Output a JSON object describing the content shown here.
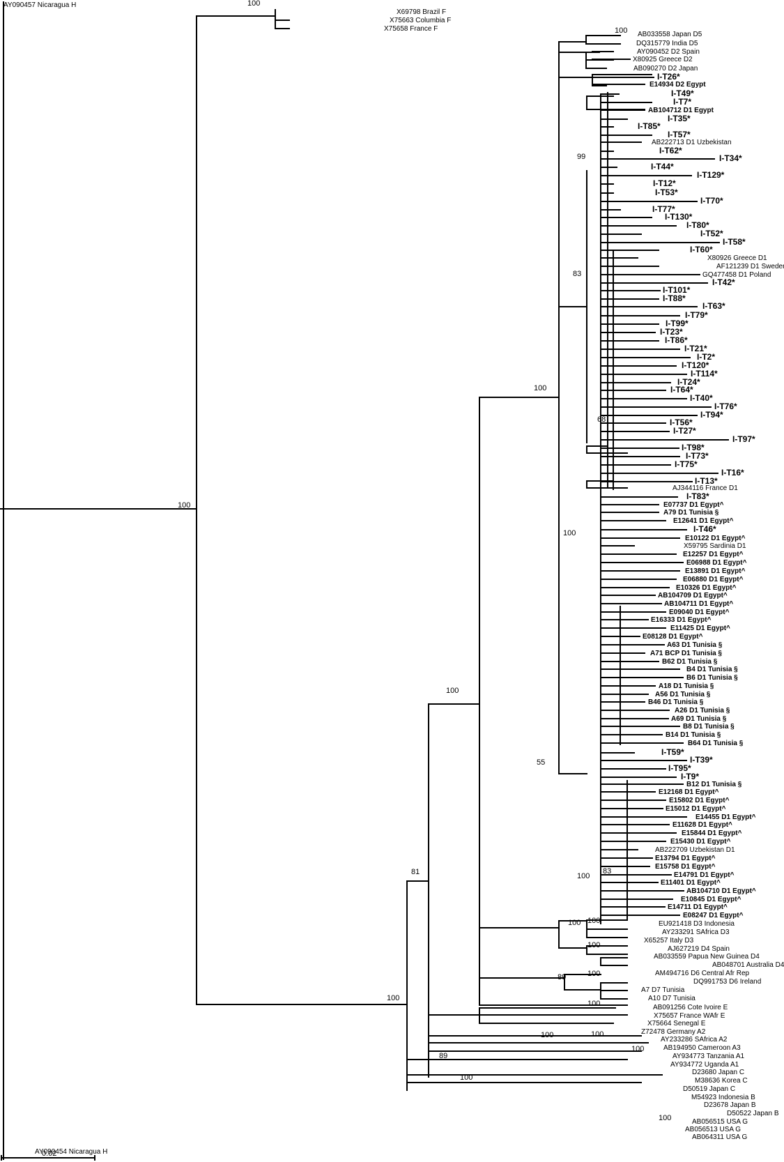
{
  "scale_bar_label": "0.02",
  "clade_labels": [
    "100",
    "100",
    "100",
    "100",
    "99",
    "83",
    "68",
    "100",
    "55",
    "83",
    "100",
    "100",
    "100",
    "89",
    "100",
    "100",
    "100",
    "100",
    "81",
    "100",
    "100",
    "100",
    "89",
    "100",
    "100",
    "100"
  ],
  "taxa": [
    "AY090457 Nicaragua H",
    "X69798 Brazil F",
    "X75663 Columbia F",
    "X75658 France F",
    "AB033558 Japan D5",
    "DQ315779 India D5",
    "AY090452 D2 Spain",
    "X80925 Greece D2",
    "AB090270 D2 Japan",
    "I-T26*",
    "E14934 D2 Egypt",
    "I-T49*",
    "I-T7*",
    "AB104712 D1 Egypt",
    "I-T35*",
    "I-T85*",
    "I-T57*",
    "AB222713 D1 Uzbekistan",
    "I-T62*",
    "I-T34*",
    "I-T44*",
    "I-T129*",
    "I-T12*",
    "I-T53*",
    "I-T70*",
    "I-T77*",
    "I-T130*",
    "I-T80*",
    "I-T52*",
    "I-T58*",
    "I-T60*",
    "X80926 Greece D1",
    "AF121239 D1 Sweden",
    "GQ477458 D1 Poland",
    "I-T42*",
    "I-T101*",
    "I-T88*",
    "I-T63*",
    "I-T79*",
    "I-T99*",
    "I-T23*",
    "I-T86*",
    "I-T21*",
    "I-T2*",
    "I-T120*",
    "I-T114*",
    "I-T24*",
    "I-T64*",
    "I-T40*",
    "I-T76*",
    "I-T94*",
    "I-T56*",
    "I-T27*",
    "I-T97*",
    "I-T98*",
    "I-T73*",
    "I-T75*",
    "I-T16*",
    "I-T13*",
    "AJ344116 France D1",
    "I-T83*",
    "E07737 D1 Egypt^",
    "A79 D1 Tunisia §",
    "E12641 D1 Egypt^",
    "I-T46*",
    "E10122 D1 Egypt^",
    "X59795 Sardinia D1",
    "E12257 D1 Egypt^",
    "E06988 D1 Egypt^",
    "E13891 D1 Egypt^",
    "E06880 D1 Egypt^",
    "E10326 D1 Egypt^",
    "AB104709 D1 Egypt^",
    "AB104711 D1 Egypt^",
    "E09040 D1 Egypt^",
    "E16333 D1 Egypt^",
    "E11425 D1 Egypt^",
    "E08128 D1 Egypt^",
    "A63 D1 Tunisia §",
    "A71 BCP D1 Tunisia §",
    "B62 D1 Tunisia §",
    "B4 D1 Tunisia §",
    "B6 D1 Tunisia §",
    "A18 D1 Tunisia §",
    "A56 D1 Tunisia §",
    "B46 D1 Tunisia §",
    "A26 D1 Tunisia §",
    "A69 D1 Tunisia §",
    "B8 D1 Tunisia §",
    "B14 D1 Tunisia §",
    "B64 D1 Tunisia §",
    "I-T59*",
    "I-T39*",
    "I-T95*",
    "I-T9*",
    "B12 D1 Tunisia §",
    "E12168 D1 Egypt^",
    "E15802 D1 Egypt^",
    "E15012 D1 Egypt^",
    "E14455 D1 Egypt^",
    "E11628 D1 Egypt^",
    "E15844 D1 Egypt^",
    "E15430 D1 Egypt^",
    "AB222709 Uzbekistan D1",
    "E13794 D1 Egypt^",
    "E15758 D1 Egypt^",
    "E14791 D1 Egypt^",
    "E11401 D1 Egypt^",
    "AB104710 D1 Egypt^",
    "E10845 D1 Egypt^",
    "E14711 D1 Egypt^",
    "E08247 D1 Egypt^",
    "EU921418 D3 Indonesia",
    "AY233291 SAfrica D3",
    "X65257 Italy D3",
    "AJ627219 D4 Spain",
    "AB033559 Papua New Guinea D4",
    "AB048701 Australia D4",
    "AM494716 D6 Central Afr Rep",
    "DQ991753 D6 Ireland",
    "A7 D7 Tunisia",
    "A10 D7 Tunisia",
    "AB091256 Cote Ivoire E",
    "X75657 France WAfr E",
    "X75664 Senegal E",
    "Z72478 Germany A2",
    "AY233286 SAfrica A2",
    "AB194950 Cameroon A3",
    "AY934773 Tanzania A1",
    "AY934772 Uganda A1",
    "D23680 Japan C",
    "M38636 Korea C",
    "D50519 Japan C",
    "M54923 Indonesia B",
    "D23678 Japan B",
    "D50522 Japan B",
    "AB056515 USA G",
    "AB056513 USA G",
    "AB064311 USA G",
    "AY090454 Nicaragua H"
  ]
}
